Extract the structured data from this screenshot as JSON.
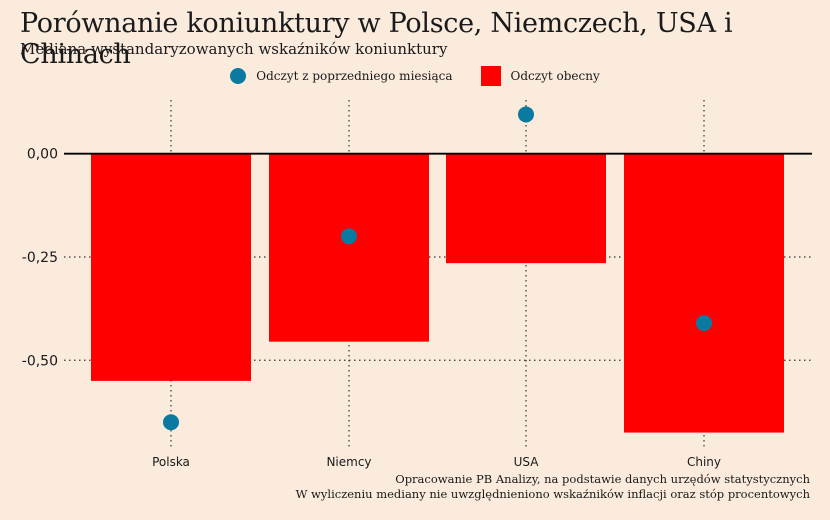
{
  "chart_data": {
    "type": "bar",
    "title": "Porównanie koniunktury w Polsce, Niemczech, USA i Chinach",
    "subtitle": "Mediana wystandaryzowanych wskaźników koniunktury",
    "categories": [
      "Polska",
      "Niemcy",
      "USA",
      "Chiny"
    ],
    "series": [
      {
        "name": "Odczyt obecny",
        "kind": "bar",
        "color": "#FF0000",
        "values": [
          -0.55,
          -0.455,
          -0.265,
          -0.675
        ]
      },
      {
        "name": "Odczyt z poprzedniego miesiąca",
        "kind": "point",
        "color": "#0B7AA0",
        "values": [
          -0.65,
          -0.2,
          0.095,
          -0.41
        ]
      }
    ],
    "yticks": [
      0.0,
      -0.25,
      -0.5
    ],
    "ytick_labels": [
      "0,00",
      "-0,25",
      "-0,50"
    ],
    "ylim": [
      -0.71,
      0.13
    ],
    "grid": true,
    "legend_position": "top-center",
    "xlabel": "",
    "ylabel": ""
  },
  "caption": {
    "line1": "Opracowanie PB Analizy, na podstawie danych urzędów statystycznych",
    "line2": "W wyliczeniu mediany nie uwzględnieniono wskaźników inflacji oraz stóp procentowych"
  }
}
